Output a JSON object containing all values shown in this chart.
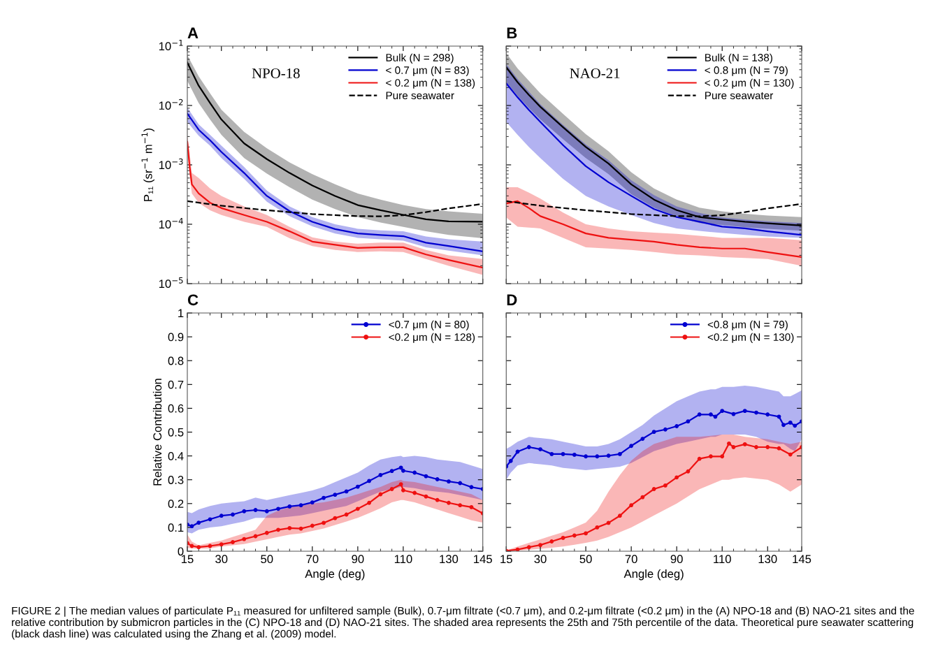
{
  "chart_data": [
    {
      "type": "line",
      "title": "A",
      "ylabel": "P₁₁ (sr$^{−1}$ m$^{−1}$)",
      "xlim": [
        15,
        145
      ],
      "xticks": [
        15,
        30,
        50,
        70,
        90,
        110,
        130,
        145
      ],
      "ylim": [
        1e-05,
        0.1
      ],
      "yticks": [
        {
          "value": 1e-05,
          "label": "10$^{−5}$"
        },
        {
          "value": 0.0001,
          "label": "10$^{−4}$"
        },
        {
          "value": 0.001,
          "label": "10$^{−3}$"
        },
        {
          "value": 0.01,
          "label": "10$^{−2}$"
        },
        {
          "value": 0.1,
          "label": "10$^{−1}$"
        }
      ],
      "log": "y",
      "tick_labels": "y",
      "legend": "top right",
      "annotations": [
        "NPO-18"
      ],
      "series": [
        {
          "name": "Bulk (N = 298)",
          "color": "#000000",
          "x": [
            15,
            20,
            25,
            30,
            40,
            50,
            60,
            70,
            80,
            90,
            100,
            110,
            120,
            130,
            145
          ],
          "values": [
            0.053,
            0.0215,
            0.011,
            0.0058,
            0.0023,
            0.00125,
            0.00073,
            0.00045,
            0.0003,
            0.00021,
            0.000172,
            0.000144,
            0.000121,
            0.000112,
            0.00011
          ],
          "upper": [
            0.07,
            0.031,
            0.016,
            0.0085,
            0.0036,
            0.0019,
            0.0011,
            0.0007,
            0.00047,
            0.00033,
            0.00026,
            0.00021,
            0.00018,
            0.000165,
            0.00015
          ],
          "lower": [
            0.026,
            0.011,
            0.0058,
            0.0032,
            0.0013,
            0.00071,
            0.00042,
            0.00026,
            0.00018,
            0.000132,
            0.000107,
            9e-05,
            7.6e-05,
            6.6e-05,
            5.8e-05
          ]
        },
        {
          "name": "< 0.7 μm (N = 83)",
          "color": "#0000d0",
          "x": [
            15,
            20,
            25,
            30,
            40,
            50,
            60,
            70,
            80,
            90,
            100,
            110,
            120,
            130,
            145
          ],
          "values": [
            0.0073,
            0.0039,
            0.0026,
            0.00165,
            0.00073,
            0.0003,
            0.000166,
            0.00011,
            8.3e-05,
            7e-05,
            6.6e-05,
            6.3e-05,
            4.9e-05,
            4.3e-05,
            3.5e-05
          ],
          "upper": [
            0.0092,
            0.0048,
            0.0032,
            0.0021,
            0.00092,
            0.00037,
            0.0002,
            0.000132,
            0.0001,
            8.4e-05,
            7.9e-05,
            7.6e-05,
            6.2e-05,
            5.6e-05,
            5.1e-05
          ],
          "lower": [
            0.0053,
            0.0031,
            0.0021,
            0.0013,
            0.00058,
            0.00024,
            0.000136,
            9.2e-05,
            7e-05,
            5.9e-05,
            5.6e-05,
            5.3e-05,
            4.1e-05,
            3.6e-05,
            3e-05
          ]
        },
        {
          "name": "< 0.2 μm (N = 138)",
          "color": "#ee1111",
          "x": [
            15,
            16,
            17,
            20,
            25,
            30,
            40,
            50,
            60,
            70,
            80,
            90,
            100,
            110,
            120,
            130,
            145
          ],
          "values": [
            0.00245,
            0.00095,
            0.00047,
            0.00033,
            0.00023,
            0.000187,
            0.000143,
            0.00011,
            7.6e-05,
            5.1e-05,
            4.5e-05,
            4e-05,
            4.1e-05,
            4.1e-05,
            3.1e-05,
            2.5e-05,
            1.86e-05
          ],
          "upper": [
            0.0031,
            0.0016,
            0.00073,
            0.0006,
            0.0004,
            0.0003,
            0.0002,
            0.000143,
            9e-05,
            6e-05,
            5.1e-05,
            4.7e-05,
            4.9e-05,
            4.9e-05,
            3.7e-05,
            3e-05,
            2.6e-05
          ],
          "lower": [
            0.002,
            0.00067,
            0.00033,
            0.00023,
            0.000172,
            0.000143,
            0.00011,
            9e-05,
            5.8e-05,
            4.3e-05,
            3.7e-05,
            3.4e-05,
            3.5e-05,
            3.4e-05,
            2.6e-05,
            2e-05,
            1.4e-05
          ]
        },
        {
          "name": "Pure seawater",
          "color": "#000000",
          "line_style": "dashed",
          "x": [
            15,
            30,
            50,
            70,
            90,
            100,
            110,
            120,
            130,
            145
          ],
          "values": [
            0.000245,
            0.000205,
            0.000172,
            0.000148,
            0.000137,
            0.000136,
            0.000142,
            0.00016,
            0.000185,
            0.00022
          ]
        }
      ]
    },
    {
      "type": "line",
      "title": "B",
      "xlim": [
        15,
        145
      ],
      "xticks": [
        15,
        30,
        50,
        70,
        90,
        110,
        130,
        145
      ],
      "ylim": [
        1e-05,
        0.1
      ],
      "yticks": [
        {
          "value": 1e-05,
          "label": null
        },
        {
          "value": 0.0001,
          "label": null
        },
        {
          "value": 0.001,
          "label": null
        },
        {
          "value": 0.01,
          "label": null
        },
        {
          "value": 0.1,
          "label": null
        }
      ],
      "log": "y",
      "tick_labels": false,
      "legend": "top right",
      "annotations": [
        "NAO-21"
      ],
      "series": [
        {
          "name": "Bulk (N = 138)",
          "color": "#000000",
          "x": [
            15,
            20,
            25,
            30,
            40,
            50,
            60,
            70,
            80,
            90,
            100,
            110,
            120,
            130,
            145
          ],
          "values": [
            0.044,
            0.0246,
            0.015,
            0.0095,
            0.0043,
            0.002,
            0.00105,
            0.00047,
            0.00026,
            0.000173,
            0.000132,
            0.00012,
            0.00011,
            0.000104,
            9.5e-05
          ],
          "upper": [
            0.076,
            0.042,
            0.026,
            0.016,
            0.0072,
            0.0033,
            0.0017,
            0.00075,
            0.0004,
            0.00026,
            0.00019,
            0.000165,
            0.00015,
            0.00014,
            0.000132
          ],
          "lower": [
            0.025,
            0.0145,
            0.009,
            0.0058,
            0.0027,
            0.0013,
            0.0007,
            0.00032,
            0.00019,
            0.000135,
            0.000105,
            9.7e-05,
            8.9e-05,
            8.4e-05,
            7.8e-05
          ]
        },
        {
          "name": "< 0.8 μm (N = 79)",
          "color": "#0000d0",
          "x": [
            15,
            20,
            25,
            30,
            40,
            50,
            60,
            70,
            80,
            90,
            100,
            110,
            120,
            130,
            145
          ],
          "values": [
            0.0236,
            0.0137,
            0.0084,
            0.0053,
            0.00215,
            0.00095,
            0.00051,
            0.0003,
            0.00018,
            0.000132,
            0.00011,
            9.1e-05,
            8.5e-05,
            7.6e-05,
            6.6e-05
          ],
          "upper": [
            0.05,
            0.028,
            0.017,
            0.0105,
            0.0047,
            0.0022,
            0.0012,
            0.00055,
            0.00031,
            0.0002,
            0.000155,
            0.00013,
            0.00012,
            0.000112,
            0.000105
          ],
          "lower": [
            0.0053,
            0.0032,
            0.002,
            0.0013,
            0.00058,
            0.0003,
            0.0002,
            0.000143,
            0.000105,
            8.5e-05,
            7.7e-05,
            7.1e-05,
            6.6e-05,
            6.2e-05,
            5.9e-05
          ]
        },
        {
          "name": "< 0.2 μm (N = 130)",
          "color": "#ee1111",
          "x": [
            15,
            20,
            25,
            30,
            40,
            50,
            60,
            70,
            80,
            90,
            100,
            110,
            120,
            130,
            145
          ],
          "values": [
            0.000224,
            0.000245,
            0.000187,
            0.000137,
            0.0001,
            7e-05,
            5.9e-05,
            5.5e-05,
            5.1e-05,
            4.5e-05,
            4.1e-05,
            3.9e-05,
            3.9e-05,
            3.4e-05,
            2.8e-05
          ],
          "upper": [
            0.00042,
            0.00042,
            0.00034,
            0.00027,
            0.000157,
            0.0001,
            8.5e-05,
            7.6e-05,
            7.2e-05,
            6.9e-05,
            6.4e-05,
            5.9e-05,
            5.9e-05,
            5.9e-05,
            5.4e-05
          ],
          "lower": [
            0.00013,
            9.1e-05,
            8.8e-05,
            8.5e-05,
            5.9e-05,
            4.1e-05,
            3.9e-05,
            3.7e-05,
            3.4e-05,
            3.1e-05,
            3e-05,
            2.8e-05,
            2.7e-05,
            2.6e-05,
            2e-05
          ]
        },
        {
          "name": "Pure seawater",
          "color": "#000000",
          "line_style": "dashed",
          "x": [
            15,
            30,
            50,
            70,
            90,
            100,
            110,
            120,
            130,
            145
          ],
          "values": [
            0.000245,
            0.000205,
            0.000172,
            0.000148,
            0.000137,
            0.000136,
            0.000142,
            0.00016,
            0.000185,
            0.00022
          ]
        }
      ]
    },
    {
      "type": "line",
      "title": "C",
      "xlabel": "Angle (deg)",
      "ylabel": "Relative Contribution",
      "xlim": [
        15,
        145
      ],
      "xticks": [
        15,
        30,
        50,
        70,
        90,
        110,
        130,
        145
      ],
      "ylim": [
        0,
        1
      ],
      "yticks": [
        0,
        0.1,
        0.2,
        0.3,
        0.4,
        0.5,
        0.6,
        0.7,
        0.8,
        0.9,
        1
      ],
      "marker": "circle",
      "legend": "top right",
      "series": [
        {
          "name": "<0.7 μm (N = 80)",
          "color": "#0000d0",
          "x": [
            15,
            17,
            20,
            25,
            30,
            35,
            40,
            45,
            50,
            55,
            60,
            65,
            70,
            75,
            80,
            85,
            90,
            95,
            100,
            105,
            109,
            110,
            115,
            120,
            125,
            130,
            135,
            140,
            145
          ],
          "values": [
            0.112,
            0.105,
            0.12,
            0.134,
            0.149,
            0.154,
            0.168,
            0.173,
            0.168,
            0.178,
            0.188,
            0.193,
            0.205,
            0.224,
            0.237,
            0.251,
            0.271,
            0.295,
            0.32,
            0.337,
            0.351,
            0.338,
            0.33,
            0.315,
            0.302,
            0.293,
            0.286,
            0.269,
            0.261
          ],
          "upper": [
            0.165,
            0.16,
            0.175,
            0.19,
            0.2,
            0.205,
            0.21,
            0.225,
            0.215,
            0.225,
            0.235,
            0.245,
            0.255,
            0.27,
            0.29,
            0.31,
            0.33,
            0.36,
            0.385,
            0.395,
            0.4,
            0.395,
            0.4,
            0.395,
            0.385,
            0.38,
            0.375,
            0.36,
            0.345
          ],
          "lower": [
            0.08,
            0.075,
            0.09,
            0.1,
            0.105,
            0.115,
            0.125,
            0.14,
            0.14,
            0.14,
            0.145,
            0.15,
            0.16,
            0.17,
            0.18,
            0.19,
            0.21,
            0.23,
            0.25,
            0.26,
            0.27,
            0.27,
            0.265,
            0.255,
            0.25,
            0.245,
            0.235,
            0.225,
            0.215
          ]
        },
        {
          "name": "<0.2 μm (N = 128)",
          "color": "#ee1111",
          "x": [
            15,
            17,
            20,
            25,
            30,
            35,
            40,
            45,
            50,
            55,
            60,
            65,
            70,
            75,
            80,
            85,
            90,
            95,
            100,
            105,
            109,
            110,
            115,
            120,
            125,
            130,
            135,
            140,
            145
          ],
          "values": [
            0.034,
            0.022,
            0.017,
            0.022,
            0.029,
            0.038,
            0.051,
            0.063,
            0.077,
            0.09,
            0.097,
            0.095,
            0.107,
            0.119,
            0.139,
            0.154,
            0.178,
            0.203,
            0.239,
            0.261,
            0.281,
            0.256,
            0.245,
            0.23,
            0.215,
            0.203,
            0.193,
            0.185,
            0.159
          ],
          "upper": [
            0.07,
            0.04,
            0.025,
            0.035,
            0.045,
            0.06,
            0.075,
            0.09,
            0.149,
            0.17,
            0.185,
            0.19,
            0.2,
            0.205,
            0.215,
            0.225,
            0.24,
            0.255,
            0.27,
            0.29,
            0.3,
            0.295,
            0.29,
            0.28,
            0.27,
            0.26,
            0.25,
            0.24,
            0.215
          ],
          "lower": [
            0.015,
            0.012,
            0.01,
            0.012,
            0.02,
            0.025,
            0.03,
            0.04,
            0.05,
            0.06,
            0.07,
            0.075,
            0.085,
            0.095,
            0.11,
            0.125,
            0.14,
            0.16,
            0.18,
            0.205,
            0.215,
            0.215,
            0.205,
            0.19,
            0.175,
            0.16,
            0.145,
            0.13,
            0.12
          ]
        }
      ]
    },
    {
      "type": "line",
      "title": "D",
      "xlabel": "Angle (deg)",
      "xlim": [
        15,
        145
      ],
      "xticks": [
        15,
        30,
        50,
        70,
        90,
        110,
        130,
        145
      ],
      "ylim": [
        0,
        1
      ],
      "yticks": [
        0,
        0.1,
        0.2,
        0.3,
        0.4,
        0.5,
        0.6,
        0.7,
        0.8,
        0.9,
        1
      ],
      "marker": "circle",
      "tick_labels": "x",
      "legend": "top right",
      "annotations": [
        "FIGURE 2 | The median values of particulate P₁₁ measured for unfiltered sample (Bulk), 0.7-μm filtrate (<0.7 μm), and 0.2-μm filtrate (<0.2 μm) in the (A) NPO-18 and (B) NAO-21 sites and the relative contribution by submicron particles in the (C) NPO-18 and (D) NAO-21 sites. The shaded area represents the 25th and 75th percentile of the data. Theoretical pure seawater scattering (black dash line) was calculated using the Zhang et al. (2009) model."
      ],
      "series": [
        {
          "name": "<0.8 μm (N = 79)",
          "color": "#0000d0",
          "x": [
            15,
            17,
            20,
            25,
            30,
            35,
            40,
            45,
            50,
            55,
            60,
            65,
            70,
            75,
            80,
            85,
            90,
            95,
            100,
            105,
            107,
            110,
            115,
            120,
            125,
            130,
            135,
            137,
            140,
            142,
            145
          ],
          "values": [
            0.356,
            0.379,
            0.418,
            0.437,
            0.428,
            0.408,
            0.408,
            0.405,
            0.398,
            0.398,
            0.401,
            0.408,
            0.442,
            0.472,
            0.501,
            0.511,
            0.525,
            0.545,
            0.574,
            0.574,
            0.565,
            0.589,
            0.576,
            0.589,
            0.582,
            0.574,
            0.565,
            0.53,
            0.54,
            0.527,
            0.545
          ],
          "upper": [
            0.43,
            0.44,
            0.46,
            0.48,
            0.475,
            0.47,
            0.46,
            0.45,
            0.44,
            0.44,
            0.45,
            0.47,
            0.5,
            0.53,
            0.57,
            0.6,
            0.63,
            0.65,
            0.67,
            0.68,
            0.68,
            0.69,
            0.69,
            0.695,
            0.69,
            0.68,
            0.67,
            0.65,
            0.65,
            0.66,
            0.675
          ],
          "lower": [
            0.3,
            0.33,
            0.36,
            0.37,
            0.365,
            0.36,
            0.35,
            0.345,
            0.34,
            0.345,
            0.35,
            0.355,
            0.37,
            0.395,
            0.42,
            0.435,
            0.45,
            0.46,
            0.47,
            0.48,
            0.48,
            0.49,
            0.49,
            0.49,
            0.48,
            0.46,
            0.45,
            0.45,
            0.43,
            0.42,
            0.47
          ]
        },
        {
          "name": "<0.2 μm (N = 130)",
          "color": "#ee1111",
          "x": [
            15,
            20,
            25,
            30,
            35,
            40,
            45,
            50,
            55,
            60,
            65,
            70,
            75,
            80,
            85,
            90,
            95,
            100,
            105,
            110,
            113,
            115,
            120,
            125,
            130,
            135,
            140,
            145
          ],
          "values": [
            0.002,
            0.007,
            0.017,
            0.026,
            0.041,
            0.056,
            0.066,
            0.075,
            0.1,
            0.119,
            0.149,
            0.193,
            0.227,
            0.261,
            0.276,
            0.31,
            0.335,
            0.388,
            0.398,
            0.398,
            0.452,
            0.437,
            0.449,
            0.437,
            0.437,
            0.432,
            0.406,
            0.437
          ],
          "upper": [
            0.003,
            0.02,
            0.035,
            0.05,
            0.065,
            0.08,
            0.1,
            0.12,
            0.17,
            0.25,
            0.32,
            0.38,
            0.42,
            0.45,
            0.465,
            0.48,
            0.48,
            0.48,
            0.485,
            0.49,
            0.49,
            0.49,
            0.48,
            0.475,
            0.47,
            0.46,
            0.45,
            0.46
          ],
          "lower": [
            0,
            0.003,
            0.006,
            0.01,
            0.015,
            0.02,
            0.027,
            0.035,
            0.045,
            0.06,
            0.08,
            0.1,
            0.125,
            0.15,
            0.175,
            0.2,
            0.23,
            0.26,
            0.28,
            0.3,
            0.3,
            0.305,
            0.31,
            0.305,
            0.3,
            0.28,
            0.25,
            0.28
          ]
        }
      ]
    }
  ]
}
